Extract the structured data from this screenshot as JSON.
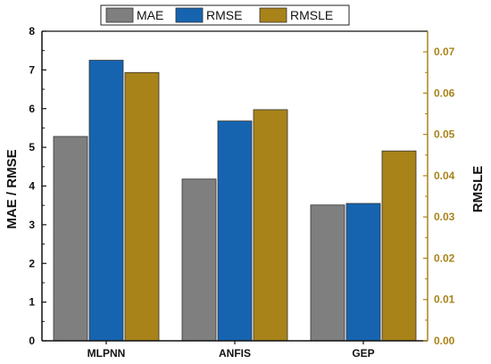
{
  "chart_data": {
    "type": "bar",
    "categories": [
      "MLPNN",
      "ANFIS",
      "GEP"
    ],
    "series": [
      {
        "name": "MAE",
        "axis": "left",
        "color": "#7f7f7f",
        "values": [
          5.28,
          4.18,
          3.51
        ]
      },
      {
        "name": "RMSE",
        "axis": "left",
        "color": "#1664b0",
        "values": [
          7.25,
          5.68,
          3.55
        ]
      },
      {
        "name": "RMSLE",
        "axis": "right",
        "color": "#a8831a",
        "values": [
          0.065,
          0.056,
          0.046
        ]
      }
    ],
    "ylabel": "MAE / RMSE",
    "ylabel_right": "RMSLE",
    "ylim": [
      0,
      8
    ],
    "ylim_right": [
      0,
      0.075
    ],
    "yticks": [
      "0",
      "1",
      "2",
      "3",
      "4",
      "5",
      "6",
      "7",
      "8"
    ],
    "yticks_right": [
      "0.00",
      "0.01",
      "0.02",
      "0.03",
      "0.04",
      "0.05",
      "0.06",
      "0.07"
    ],
    "legend_position": "top",
    "grid": false,
    "right_axis_color": "#a8831a"
  }
}
